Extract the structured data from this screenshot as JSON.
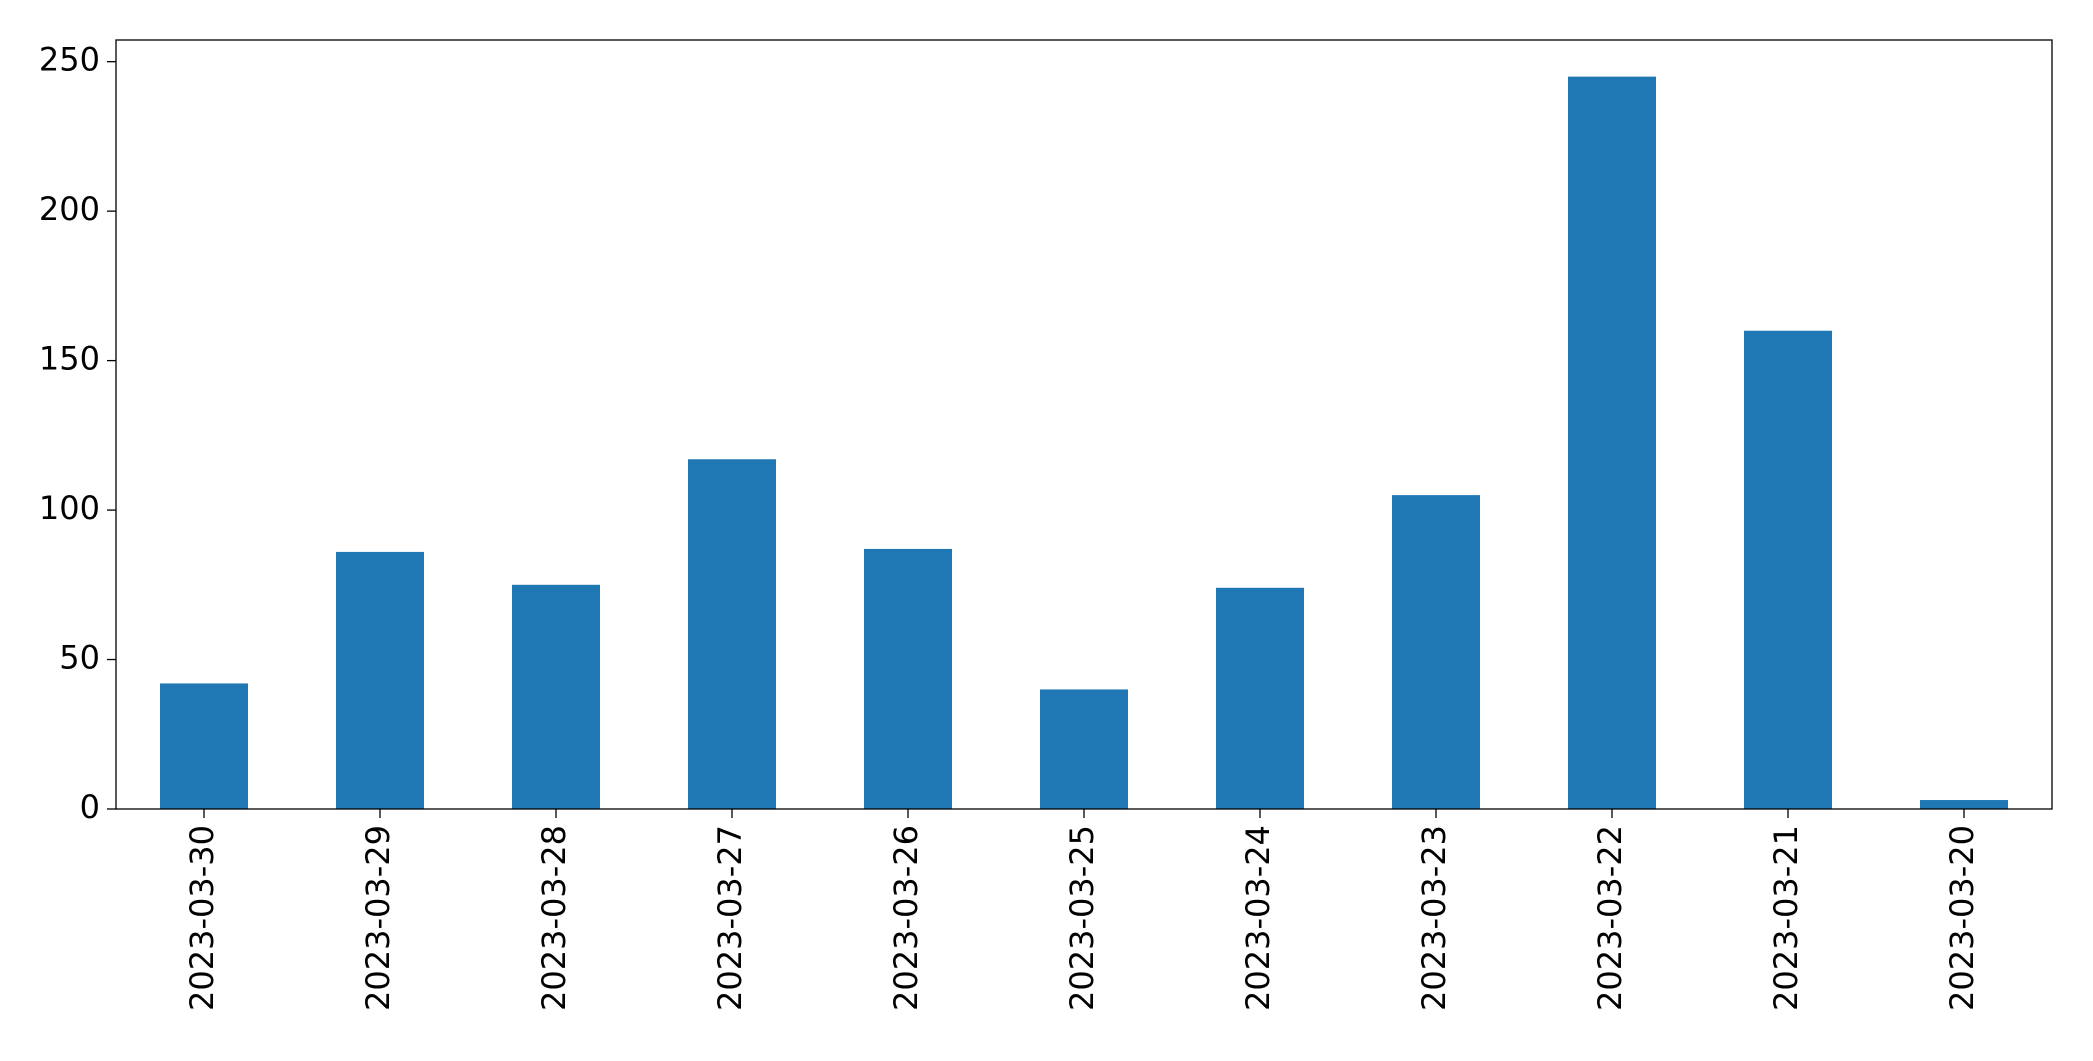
{
  "chart_data": {
    "type": "bar",
    "categories": [
      "2023-03-30",
      "2023-03-29",
      "2023-03-28",
      "2023-03-27",
      "2023-03-26",
      "2023-03-25",
      "2023-03-24",
      "2023-03-23",
      "2023-03-22",
      "2023-03-21",
      "2023-03-20"
    ],
    "values": [
      42,
      86,
      75,
      117,
      87,
      40,
      74,
      105,
      245,
      160,
      3
    ],
    "color": "#1f77b4",
    "ylim": [
      0,
      257.25
    ],
    "yticks": [
      0,
      50,
      100,
      150,
      200,
      250
    ],
    "grid": false
  }
}
